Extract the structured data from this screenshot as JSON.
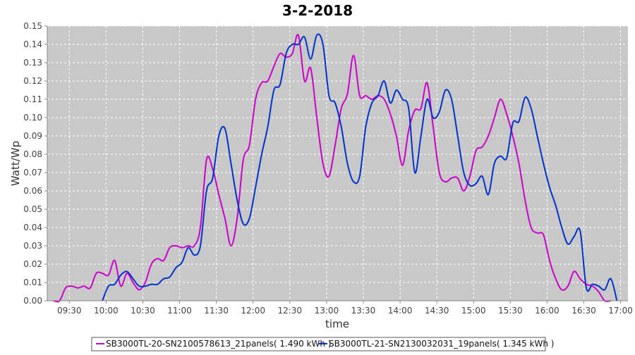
{
  "chart_data": {
    "type": "line",
    "title": "3-2-2018",
    "xlabel": "time",
    "ylabel": "Watt/Wp",
    "xlim": [
      "09:12",
      "17:06"
    ],
    "ylim": [
      0,
      0.15
    ],
    "y_ticks": [
      0.0,
      0.01,
      0.02,
      0.03,
      0.04,
      0.05,
      0.06,
      0.07,
      0.08,
      0.09,
      0.1,
      0.11,
      0.12,
      0.13,
      0.14,
      0.15
    ],
    "y_tick_labels": [
      "0.00",
      "0.01",
      "0.02",
      "0.03",
      "0.04",
      "0.05",
      "0.06",
      "0.07",
      "0.08",
      "0.09",
      "0.10",
      "0.11",
      "0.12",
      "0.13",
      "0.14",
      "0.15"
    ],
    "x_ticks": [
      "09:30",
      "10:00",
      "10:30",
      "11:00",
      "11:30",
      "12:00",
      "12:30",
      "13:00",
      "13:30",
      "14:00",
      "14:30",
      "15:00",
      "15:30",
      "16:00",
      "16:30",
      "17:00"
    ],
    "grid": true,
    "legend_position": "bottom",
    "colors": {
      "plot_background": "#c8c8c8",
      "grid": "#ffffff"
    },
    "series": [
      {
        "name": "SB3000TL-20-SN2100578613_21panels( 1.490 kWh )",
        "color": "#cc00cc",
        "x": [
          "09:17",
          "09:22",
          "09:27",
          "09:32",
          "09:37",
          "09:42",
          "09:47",
          "09:52",
          "09:57",
          "10:02",
          "10:07",
          "10:12",
          "10:17",
          "10:22",
          "10:27",
          "10:32",
          "10:37",
          "10:42",
          "10:47",
          "10:52",
          "10:57",
          "11:02",
          "11:07",
          "11:12",
          "11:17",
          "11:22",
          "11:27",
          "11:32",
          "11:37",
          "11:42",
          "11:47",
          "11:52",
          "11:57",
          "12:02",
          "12:07",
          "12:12",
          "12:17",
          "12:22",
          "12:27",
          "12:32",
          "12:37",
          "12:42",
          "12:47",
          "12:52",
          "12:57",
          "13:02",
          "13:07",
          "13:12",
          "13:17",
          "13:22",
          "13:27",
          "13:32",
          "13:37",
          "13:42",
          "13:47",
          "13:52",
          "13:57",
          "14:02",
          "14:07",
          "14:12",
          "14:17",
          "14:22",
          "14:27",
          "14:32",
          "14:37",
          "14:42",
          "14:47",
          "14:52",
          "14:57",
          "15:02",
          "15:07",
          "15:12",
          "15:17",
          "15:22",
          "15:27",
          "15:32",
          "15:37",
          "15:42",
          "15:47",
          "15:52",
          "15:57",
          "16:02",
          "16:07",
          "16:12",
          "16:17",
          "16:22",
          "16:27",
          "16:32",
          "16:37",
          "16:42",
          "16:47",
          "16:52"
        ],
        "values": [
          0.0,
          0.0,
          0.007,
          0.008,
          0.007,
          0.008,
          0.007,
          0.015,
          0.015,
          0.014,
          0.022,
          0.008,
          0.015,
          0.01,
          0.006,
          0.01,
          0.02,
          0.023,
          0.022,
          0.029,
          0.03,
          0.029,
          0.03,
          0.03,
          0.04,
          0.077,
          0.072,
          0.058,
          0.045,
          0.03,
          0.045,
          0.077,
          0.085,
          0.11,
          0.119,
          0.12,
          0.128,
          0.135,
          0.133,
          0.135,
          0.145,
          0.12,
          0.127,
          0.1,
          0.075,
          0.068,
          0.085,
          0.105,
          0.113,
          0.134,
          0.112,
          0.112,
          0.11,
          0.112,
          0.11,
          0.102,
          0.09,
          0.074,
          0.093,
          0.104,
          0.105,
          0.119,
          0.095,
          0.07,
          0.065,
          0.067,
          0.067,
          0.06,
          0.068,
          0.082,
          0.084,
          0.09,
          0.1,
          0.11,
          0.102,
          0.09,
          0.075,
          0.055,
          0.04,
          0.037,
          0.036,
          0.022,
          0.012,
          0.006,
          0.008,
          0.016,
          0.012,
          0.009,
          0.008,
          0.005,
          0.0,
          0.0
        ]
      },
      {
        "name": "SB3000TL-21-SN2130032031_19panels( 1.345 kWh )",
        "color": "#0033cc",
        "x": [
          "09:57",
          "10:02",
          "10:07",
          "10:12",
          "10:17",
          "10:22",
          "10:27",
          "10:32",
          "10:37",
          "10:42",
          "10:47",
          "10:52",
          "10:57",
          "11:02",
          "11:07",
          "11:12",
          "11:17",
          "11:22",
          "11:27",
          "11:32",
          "11:37",
          "11:42",
          "11:47",
          "11:52",
          "11:57",
          "12:02",
          "12:07",
          "12:12",
          "12:17",
          "12:22",
          "12:27",
          "12:32",
          "12:37",
          "12:42",
          "12:47",
          "12:52",
          "12:57",
          "13:02",
          "13:07",
          "13:12",
          "13:17",
          "13:22",
          "13:27",
          "13:32",
          "13:37",
          "13:42",
          "13:47",
          "13:52",
          "13:57",
          "14:02",
          "14:07",
          "14:12",
          "14:17",
          "14:22",
          "14:27",
          "14:32",
          "14:37",
          "14:42",
          "14:47",
          "14:52",
          "14:57",
          "15:02",
          "15:07",
          "15:12",
          "15:17",
          "15:22",
          "15:27",
          "15:32",
          "15:37",
          "15:42",
          "15:47",
          "15:52",
          "15:57",
          "16:02",
          "16:07",
          "16:12",
          "16:17",
          "16:22",
          "16:27",
          "16:32",
          "16:37",
          "16:42",
          "16:47",
          "16:52",
          "16:57"
        ],
        "values": [
          0.0,
          0.008,
          0.009,
          0.014,
          0.016,
          0.012,
          0.008,
          0.008,
          0.009,
          0.009,
          0.012,
          0.013,
          0.018,
          0.021,
          0.029,
          0.025,
          0.03,
          0.06,
          0.067,
          0.09,
          0.094,
          0.075,
          0.055,
          0.042,
          0.045,
          0.062,
          0.08,
          0.095,
          0.115,
          0.118,
          0.135,
          0.14,
          0.14,
          0.144,
          0.132,
          0.145,
          0.14,
          0.112,
          0.108,
          0.095,
          0.075,
          0.065,
          0.068,
          0.095,
          0.108,
          0.112,
          0.12,
          0.108,
          0.115,
          0.11,
          0.105,
          0.07,
          0.09,
          0.11,
          0.1,
          0.103,
          0.115,
          0.11,
          0.09,
          0.07,
          0.063,
          0.064,
          0.068,
          0.058,
          0.075,
          0.079,
          0.078,
          0.097,
          0.098,
          0.111,
          0.105,
          0.09,
          0.075,
          0.062,
          0.052,
          0.04,
          0.031,
          0.035,
          0.038,
          0.007,
          0.009,
          0.008,
          0.006,
          0.012,
          0.0
        ]
      }
    ]
  }
}
